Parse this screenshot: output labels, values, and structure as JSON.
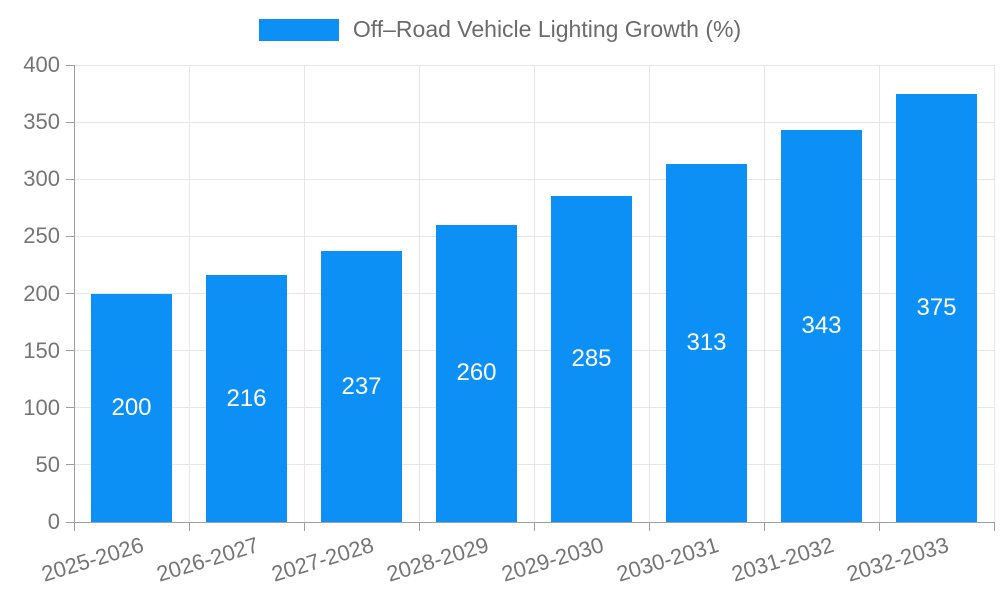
{
  "chart_data": {
    "type": "bar",
    "title": "Off–Road Vehicle Lighting Growth (%)",
    "categories": [
      "2025-2026",
      "2026-2027",
      "2027-2028",
      "2028-2029",
      "2029-2030",
      "2030-2031",
      "2031-2032",
      "2032-2033"
    ],
    "values": [
      200,
      216,
      237,
      260,
      285,
      313,
      343,
      375
    ],
    "xlabel": "",
    "ylabel": "",
    "ylim": [
      0,
      400
    ],
    "ytick_step": 50,
    "ytick_labels": [
      "0",
      "50",
      "100",
      "150",
      "200",
      "250",
      "300",
      "350",
      "400"
    ],
    "grid": true,
    "legend_position": "top",
    "bar_color": "#0d90f5",
    "bar_label_color": "#ffffff",
    "grid_color": "#e6e6e6",
    "axis_color": "#9e9e9e",
    "tick_label_color": "#757575",
    "title_color": "#6b6b6b"
  }
}
